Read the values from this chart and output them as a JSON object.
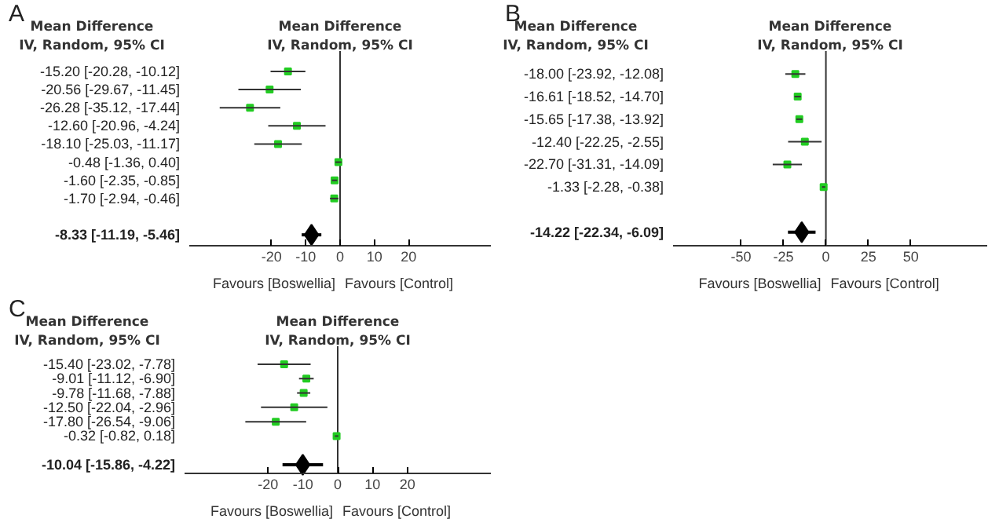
{
  "chart_data": [
    {
      "type": "scatter",
      "orientation": "horizontal",
      "title": "A",
      "categories": [
        "-15.20 [-20.28, -10.12]",
        "-20.56 [-29.67, -11.45]",
        "-26.28 [-35.12, -17.44]",
        "-12.60 [-20.96, -4.24]",
        "-18.10 [-25.03, -11.17]",
        "-0.48 [-1.36, 0.40]",
        "-1.60 [-2.35, -0.85]",
        "-1.70 [-2.94, -0.46]",
        null,
        "-8.33 [-11.19, -5.46]"
      ],
      "series": [
        {
          "color": "#22cc22",
          "marker": "square",
          "values": [
            -15.2,
            -20.56,
            -26.28,
            -12.6,
            -18.1,
            -0.48,
            -1.6,
            -1.7,
            null,
            null
          ],
          "errors": [
            [
              -20.28,
              -10.12
            ],
            [
              -29.67,
              -11.45
            ],
            [
              -35.12,
              -17.44
            ],
            [
              -20.96,
              -4.24
            ],
            [
              -25.03,
              -11.17
            ],
            [
              -1.36,
              0.4
            ],
            [
              -2.35,
              -0.85
            ],
            [
              -2.94,
              -0.46
            ],
            null,
            null
          ]
        },
        {
          "color": "#000000",
          "marker": "diamond",
          "values": [
            null,
            null,
            null,
            null,
            null,
            null,
            null,
            null,
            null,
            -8.33
          ],
          "errors": [
            null,
            null,
            null,
            null,
            null,
            null,
            null,
            null,
            null,
            [
              -11.19,
              -5.46
            ]
          ]
        }
      ],
      "xlim": [
        -44,
        44
      ],
      "xticks": [
        -20,
        -10,
        0,
        10,
        20
      ],
      "ref_lines": [
        {
          "axis": "x",
          "value": 0
        }
      ],
      "annotations": [
        "Mean Difference",
        "IV, Random, 95% CI",
        "Mean Difference",
        "IV, Random, 95% CI",
        "Favours [Boswellia]",
        "Favours [Control]"
      ]
    },
    {
      "type": "scatter",
      "orientation": "horizontal",
      "title": "B",
      "categories": [
        "-18.00 [-23.92, -12.08]",
        "-16.61 [-18.52, -14.70]",
        "-15.65 [-17.38, -13.92]",
        "-12.40 [-22.25, -2.55]",
        "-22.70 [-31.31, -14.09]",
        "-1.33 [-2.28, -0.38]",
        null,
        "-14.22 [-22.34, -6.09]"
      ],
      "series": [
        {
          "color": "#22cc22",
          "marker": "square",
          "values": [
            -18.0,
            -16.61,
            -15.65,
            -12.4,
            -22.7,
            -1.33,
            null,
            null
          ],
          "errors": [
            [
              -23.92,
              -12.08
            ],
            [
              -18.52,
              -14.7
            ],
            [
              -17.38,
              -13.92
            ],
            [
              -22.25,
              -2.55
            ],
            [
              -31.31,
              -14.09
            ],
            [
              -2.28,
              -0.38
            ],
            null,
            null
          ]
        },
        {
          "color": "#000000",
          "marker": "diamond",
          "values": [
            null,
            null,
            null,
            null,
            null,
            null,
            null,
            -14.22
          ],
          "errors": [
            null,
            null,
            null,
            null,
            null,
            null,
            null,
            [
              -22.34,
              -6.09
            ]
          ]
        }
      ],
      "xlim": [
        -90,
        95
      ],
      "xticks": [
        -50,
        -25,
        0,
        25,
        50
      ],
      "ref_lines": [
        {
          "axis": "x",
          "value": 0
        }
      ],
      "annotations": [
        "Mean Difference",
        "IV, Random, 95% CI",
        "Mean Difference",
        "IV, Random, 95% CI",
        "Favours [Boswellia]",
        "Favours [Control]"
      ]
    },
    {
      "type": "scatter",
      "orientation": "horizontal",
      "title": "C",
      "categories": [
        "-15.40 [-23.02, -7.78]",
        "-9.01 [-11.12, -6.90]",
        "-9.78 [-11.68, -7.88]",
        "-12.50 [-22.04, -2.96]",
        "-17.80 [-26.54, -9.06]",
        "-0.32 [-0.82, 0.18]",
        null,
        "-10.04 [-15.86, -4.22]"
      ],
      "series": [
        {
          "color": "#22cc22",
          "marker": "square",
          "values": [
            -15.4,
            -9.01,
            -9.78,
            -12.5,
            -17.8,
            -0.32,
            null,
            null
          ],
          "errors": [
            [
              -23.02,
              -7.78
            ],
            [
              -11.12,
              -6.9
            ],
            [
              -11.68,
              -7.88
            ],
            [
              -22.04,
              -2.96
            ],
            [
              -26.54,
              -9.06
            ],
            [
              -0.82,
              0.18
            ],
            null,
            null
          ]
        },
        {
          "color": "#000000",
          "marker": "diamond",
          "values": [
            null,
            null,
            null,
            null,
            null,
            null,
            null,
            -10.04
          ],
          "errors": [
            null,
            null,
            null,
            null,
            null,
            null,
            null,
            [
              -15.86,
              -4.22
            ]
          ]
        }
      ],
      "xlim": [
        -44,
        44
      ],
      "xticks": [
        -20,
        -10,
        0,
        10,
        20
      ],
      "ref_lines": [
        {
          "axis": "x",
          "value": 0
        }
      ],
      "annotations": [
        "Mean Difference",
        "IV, Random, 95% CI",
        "Mean Difference",
        "IV, Random, 95% CI",
        "Favours [Boswellia]",
        "Favours [Control]"
      ]
    }
  ]
}
